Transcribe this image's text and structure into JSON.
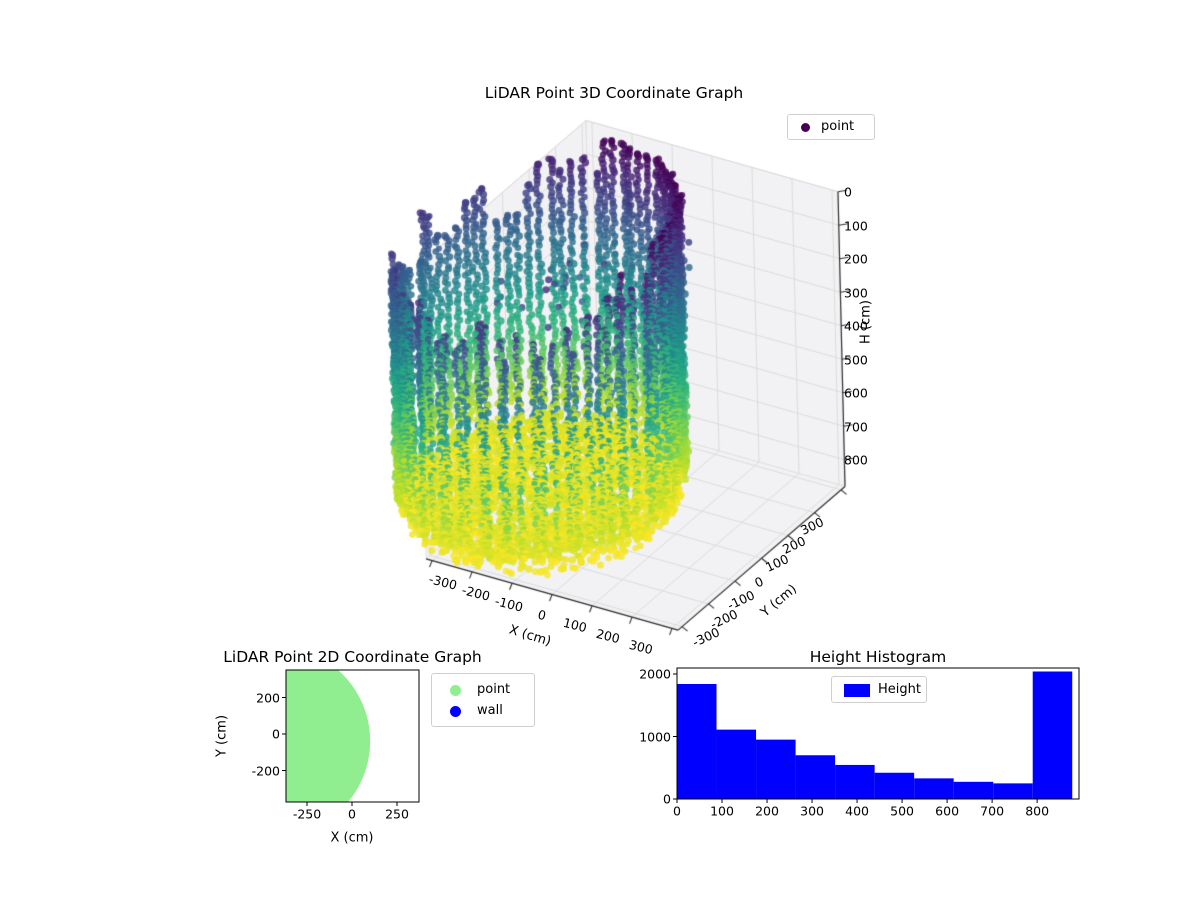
{
  "figure": {
    "background": "#ffffff"
  },
  "chart_data": [
    {
      "id": "lidar3d",
      "type": "scatter3d",
      "title": "LiDAR Point 3D Coordinate Graph",
      "xlabel": "X (cm)",
      "ylabel": "Y (cm)",
      "zlabel": "H (cm)",
      "xticks": [
        -300,
        -200,
        -100,
        0,
        100,
        200,
        300
      ],
      "yticks": [
        300,
        200,
        100,
        0,
        -100,
        -200,
        -300
      ],
      "zticks": [
        0,
        100,
        200,
        300,
        400,
        500,
        600,
        700,
        800
      ],
      "xlim": [
        -315,
        315
      ],
      "ylim": [
        -315,
        315
      ],
      "hlim": [
        0,
        880
      ],
      "zaxis_inverted": true,
      "legend": [
        {
          "label": "point",
          "color": "#440154"
        }
      ],
      "colormap": "viridis",
      "viridis_stops": [
        "#440154",
        "#482878",
        "#3e4989",
        "#31688e",
        "#26828e",
        "#1f9e89",
        "#35b779",
        "#6ece58",
        "#b5de2b",
        "#fde725"
      ],
      "structure": {
        "wall": {
          "center_x": -220,
          "center_y": -25,
          "radius": 300,
          "columns": 80,
          "h_bottom": 812,
          "h_step": 10.5,
          "dark_sector_deg": [
            -5,
            95
          ],
          "front_top_min": 115,
          "front_top_max": 265
        },
        "floor": {
          "radius": 295,
          "h_min": 810,
          "h_max": 878,
          "count": 2800
        },
        "noise": {
          "count": 35,
          "center_x": -100,
          "center_y": 30,
          "r_max": 240,
          "h_min": 110,
          "h_max": 300
        }
      },
      "pane_color": "#f2f2f4",
      "grid_color": "#d9d9d9",
      "spine_color": "#2e2e2e"
    },
    {
      "id": "lidar2d",
      "type": "scatter",
      "title": "LiDAR Point 2D Coordinate Graph",
      "xlabel": "X (cm)",
      "ylabel": "Y (cm)",
      "xticks": [
        -250,
        0,
        250
      ],
      "yticks": [
        200,
        0,
        -200
      ],
      "xlim": [
        -366,
        372
      ],
      "ylim": [
        -363,
        341
      ],
      "legend": [
        {
          "label": "point",
          "color": "#90ee90"
        },
        {
          "label": "wall",
          "color": "#0000ff"
        }
      ],
      "region": {
        "type": "disc",
        "cx": -412,
        "cy": -39,
        "r": 513,
        "color": "#90ee90"
      }
    },
    {
      "id": "height_hist",
      "type": "bar",
      "title": "Height Histogram",
      "legend": [
        {
          "label": "Height",
          "color": "#0000ff"
        }
      ],
      "bar_color": "#0000ff",
      "bin_start": 0,
      "bin_width": 87.8,
      "bin_edges": [
        0,
        87.8,
        175.6,
        263.4,
        351.2,
        439.0,
        526.8,
        614.6,
        702.4,
        790.2,
        878.0
      ],
      "values": [
        1840,
        1110,
        950,
        700,
        545,
        420,
        330,
        275,
        250,
        2040
      ],
      "xticks": [
        0,
        100,
        200,
        300,
        400,
        500,
        600,
        700,
        800
      ],
      "yticks": [
        0,
        1000,
        2000
      ],
      "xlim": [
        0,
        893
      ],
      "ylim": [
        0,
        2096
      ]
    }
  ]
}
